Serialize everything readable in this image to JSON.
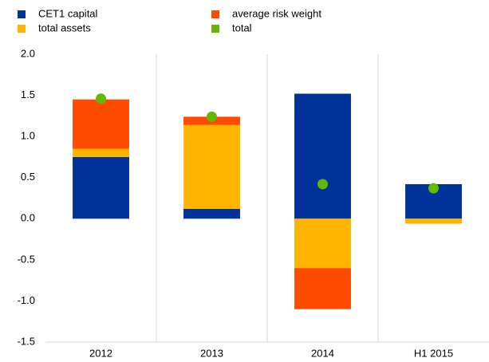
{
  "chart_data": {
    "type": "bar",
    "stacked": true,
    "categories": [
      "2012",
      "2013",
      "2014",
      "H1 2015"
    ],
    "series": [
      {
        "name": "CET1 capital",
        "color": "#003299",
        "values": [
          0.75,
          0.12,
          1.52,
          0.42
        ]
      },
      {
        "name": "total assets",
        "color": "#ffb400",
        "values": [
          0.1,
          1.02,
          -0.6,
          -0.06
        ]
      },
      {
        "name": "average risk weight",
        "color": "#ff4b00",
        "values": [
          0.6,
          0.1,
          -0.5,
          0
        ]
      },
      {
        "name": "total",
        "color": "#65b800",
        "type": "scatter",
        "values": [
          1.46,
          1.24,
          0.42,
          0.37
        ]
      }
    ],
    "ylim": [
      -1.5,
      2.0
    ],
    "yticks": [
      {
        "value": 2,
        "label": "2.0"
      },
      1.5,
      {
        "value": 1,
        "label": "1.0"
      },
      0.5,
      {
        "value": 0,
        "label": "0.0"
      },
      -0.5,
      {
        "value": -1,
        "label": "-1.0"
      },
      -1.5
    ],
    "legend": "top-left"
  }
}
